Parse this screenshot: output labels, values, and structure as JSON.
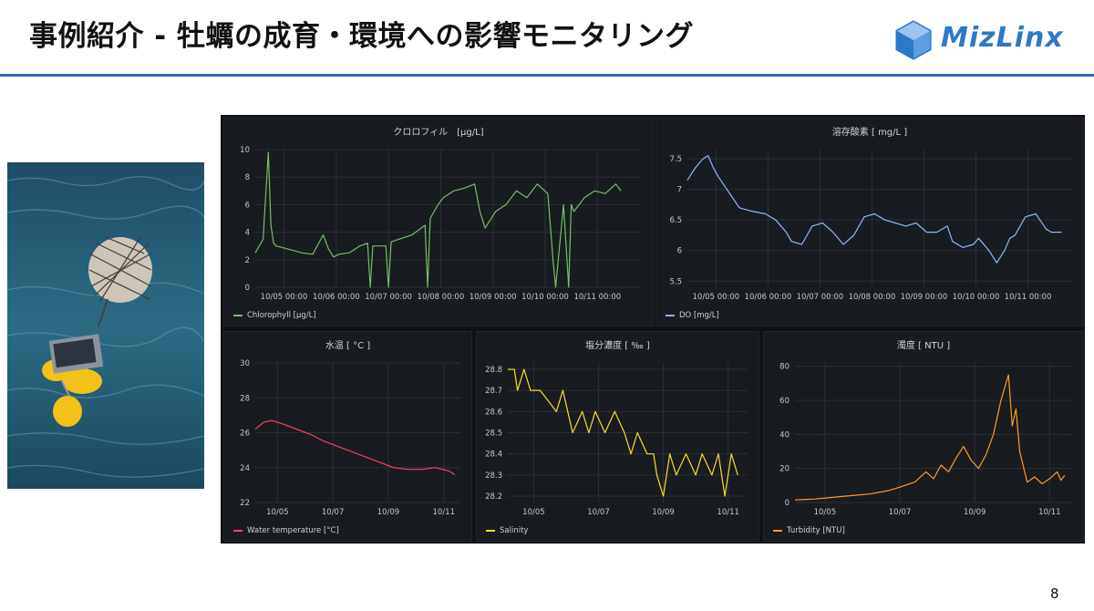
{
  "slide": {
    "title": "事例紹介 - 牡蠣の成育・環境への影響モニタリング",
    "logo_text": "MizLinx",
    "page_number": "8"
  },
  "colors": {
    "accent_rule": "#2a67ad",
    "logo": "#2d78c8",
    "chlorophyll": "#73bf69",
    "do": "#8ab8ff",
    "water_temp": "#f2495c",
    "salinity": "#fade2a",
    "turbidity": "#ff9830"
  },
  "photo": {
    "description": "buoy and sensor device floating on sea water"
  },
  "chart_data": [
    {
      "id": "chlorophyll",
      "type": "line",
      "title": "クロロフィル　[μg/L]",
      "legend": "Chlorophyll [μg/L]",
      "x_range": [
        0,
        7.4
      ],
      "ylim": [
        0,
        10
      ],
      "yticks": [
        "0",
        "2",
        "4",
        "6",
        "8",
        "10"
      ],
      "xticks": [
        {
          "v": 0.55,
          "label": "10/05 00:00"
        },
        {
          "v": 1.55,
          "label": "10/06 00:00"
        },
        {
          "v": 2.55,
          "label": "10/07 00:00"
        },
        {
          "v": 3.55,
          "label": "10/08 00:00"
        },
        {
          "v": 4.55,
          "label": "10/09 00:00"
        },
        {
          "v": 5.55,
          "label": "10/10 00:00"
        },
        {
          "v": 6.55,
          "label": "10/11 00:00"
        }
      ],
      "x": [
        0,
        0.15,
        0.25,
        0.3,
        0.35,
        0.4,
        0.6,
        0.9,
        1.1,
        1.3,
        1.4,
        1.5,
        1.6,
        1.8,
        2.0,
        2.15,
        2.2,
        2.25,
        2.5,
        2.55,
        2.6,
        3.0,
        3.25,
        3.3,
        3.35,
        3.5,
        3.6,
        3.8,
        4.0,
        4.2,
        4.3,
        4.4,
        4.6,
        4.8,
        5.0,
        5.2,
        5.4,
        5.6,
        5.7,
        5.75,
        5.9,
        6.0,
        6.05,
        6.1,
        6.3,
        6.5,
        6.7,
        6.9,
        7.0
      ],
      "y": [
        2.5,
        3.5,
        9.8,
        4.5,
        3.2,
        3.0,
        2.8,
        2.5,
        2.4,
        3.8,
        2.8,
        2.2,
        2.4,
        2.5,
        3.0,
        3.2,
        0,
        3.0,
        3.0,
        0,
        3.3,
        3.8,
        4.5,
        0,
        5.0,
        6.0,
        6.5,
        7.0,
        7.2,
        7.5,
        5.5,
        4.3,
        5.5,
        6.0,
        7.0,
        6.5,
        7.5,
        6.8,
        2.0,
        0,
        6.0,
        0,
        6.0,
        5.5,
        6.5,
        7.0,
        6.8,
        7.5,
        7.0
      ]
    },
    {
      "id": "do",
      "type": "line",
      "title": "溶存酸素 [ mg/L ]",
      "legend": "DO [mg/L]",
      "x_range": [
        0,
        7.4
      ],
      "ylim": [
        5.4,
        7.65
      ],
      "yticks": [
        "5.5",
        "6",
        "6.5",
        "7",
        "7.5"
      ],
      "xticks": [
        {
          "v": 0.55,
          "label": "10/05 00:00"
        },
        {
          "v": 1.55,
          "label": "10/06 00:00"
        },
        {
          "v": 2.55,
          "label": "10/07 00:00"
        },
        {
          "v": 3.55,
          "label": "10/08 00:00"
        },
        {
          "v": 4.55,
          "label": "10/09 00:00"
        },
        {
          "v": 5.55,
          "label": "10/10 00:00"
        },
        {
          "v": 6.55,
          "label": "10/11 00:00"
        }
      ],
      "x": [
        0,
        0.15,
        0.3,
        0.4,
        0.5,
        0.6,
        0.8,
        1.0,
        1.2,
        1.5,
        1.7,
        1.9,
        2.0,
        2.2,
        2.4,
        2.6,
        2.8,
        3.0,
        3.2,
        3.4,
        3.6,
        3.8,
        4.0,
        4.2,
        4.4,
        4.6,
        4.8,
        5.0,
        5.1,
        5.3,
        5.5,
        5.6,
        5.8,
        5.95,
        6.1,
        6.2,
        6.3,
        6.5,
        6.7,
        6.9,
        7.0,
        7.2
      ],
      "y": [
        7.15,
        7.35,
        7.5,
        7.55,
        7.35,
        7.2,
        6.95,
        6.7,
        6.65,
        6.6,
        6.5,
        6.3,
        6.15,
        6.1,
        6.4,
        6.45,
        6.3,
        6.1,
        6.25,
        6.55,
        6.6,
        6.5,
        6.45,
        6.4,
        6.45,
        6.3,
        6.3,
        6.4,
        6.15,
        6.05,
        6.1,
        6.2,
        6.0,
        5.8,
        6.0,
        6.2,
        6.25,
        6.55,
        6.6,
        6.35,
        6.3,
        6.3
      ]
    },
    {
      "id": "water_temp",
      "type": "line",
      "title": "水温 [ °C ]",
      "legend": "Water temperature [°C]",
      "x_range": [
        0,
        7.4
      ],
      "ylim": [
        22,
        30
      ],
      "yticks": [
        "22",
        "24",
        "26",
        "28",
        "30"
      ],
      "xticks": [
        {
          "v": 0.8,
          "label": "10/05"
        },
        {
          "v": 2.8,
          "label": "10/07"
        },
        {
          "v": 4.8,
          "label": "10/09"
        },
        {
          "v": 6.8,
          "label": "10/11"
        }
      ],
      "x": [
        0,
        0.3,
        0.6,
        1.0,
        1.5,
        2.0,
        2.5,
        3.0,
        3.5,
        4.0,
        4.5,
        5.0,
        5.5,
        6.0,
        6.5,
        7.0,
        7.2
      ],
      "y": [
        26.2,
        26.6,
        26.7,
        26.5,
        26.2,
        25.9,
        25.5,
        25.2,
        24.9,
        24.6,
        24.3,
        24.0,
        23.9,
        23.9,
        24.0,
        23.8,
        23.6
      ]
    },
    {
      "id": "salinity",
      "type": "line",
      "title": "塩分濃度 [ ‰ ]",
      "legend": "Salinity",
      "x_range": [
        0,
        7.4
      ],
      "ylim": [
        28.17,
        28.83
      ],
      "yticks": [
        "28.2",
        "28.3",
        "28.4",
        "28.5",
        "28.6",
        "28.7",
        "28.8"
      ],
      "xticks": [
        {
          "v": 0.8,
          "label": "10/05"
        },
        {
          "v": 2.8,
          "label": "10/07"
        },
        {
          "v": 4.8,
          "label": "10/09"
        },
        {
          "v": 6.8,
          "label": "10/11"
        }
      ],
      "x": [
        0,
        0.2,
        0.3,
        0.5,
        0.7,
        1.0,
        1.5,
        1.7,
        2.0,
        2.3,
        2.5,
        2.7,
        3.0,
        3.3,
        3.6,
        3.8,
        4.0,
        4.3,
        4.5,
        4.6,
        4.8,
        5.0,
        5.2,
        5.5,
        5.8,
        6.0,
        6.3,
        6.5,
        6.7,
        6.9,
        7.1
      ],
      "y": [
        28.8,
        28.8,
        28.7,
        28.8,
        28.7,
        28.7,
        28.6,
        28.7,
        28.5,
        28.6,
        28.5,
        28.6,
        28.5,
        28.6,
        28.5,
        28.4,
        28.5,
        28.4,
        28.4,
        28.3,
        28.2,
        28.4,
        28.3,
        28.4,
        28.3,
        28.4,
        28.3,
        28.4,
        28.2,
        28.4,
        28.3
      ]
    },
    {
      "id": "turbidity",
      "type": "line",
      "title": "濁度 [ NTU ]",
      "legend": "Turbidity [NTU]",
      "x_range": [
        0,
        7.4
      ],
      "ylim": [
        0,
        82
      ],
      "yticks": [
        "0",
        "20",
        "40",
        "60",
        "80"
      ],
      "xticks": [
        {
          "v": 0.8,
          "label": "10/05"
        },
        {
          "v": 2.8,
          "label": "10/07"
        },
        {
          "v": 4.8,
          "label": "10/09"
        },
        {
          "v": 6.8,
          "label": "10/11"
        }
      ],
      "x": [
        0,
        0.5,
        1.0,
        1.5,
        2.0,
        2.5,
        2.8,
        3.2,
        3.5,
        3.7,
        3.9,
        4.1,
        4.3,
        4.5,
        4.7,
        4.9,
        5.1,
        5.3,
        5.5,
        5.7,
        5.8,
        5.9,
        6.0,
        6.2,
        6.4,
        6.6,
        6.8,
        7.0,
        7.1,
        7.2
      ],
      "y": [
        1.5,
        2,
        3,
        4,
        5,
        7,
        9,
        12,
        18,
        14,
        22,
        18,
        26,
        33,
        25,
        20,
        28,
        40,
        60,
        75,
        45,
        55,
        30,
        12,
        15,
        11,
        14,
        18,
        13,
        16
      ]
    }
  ]
}
